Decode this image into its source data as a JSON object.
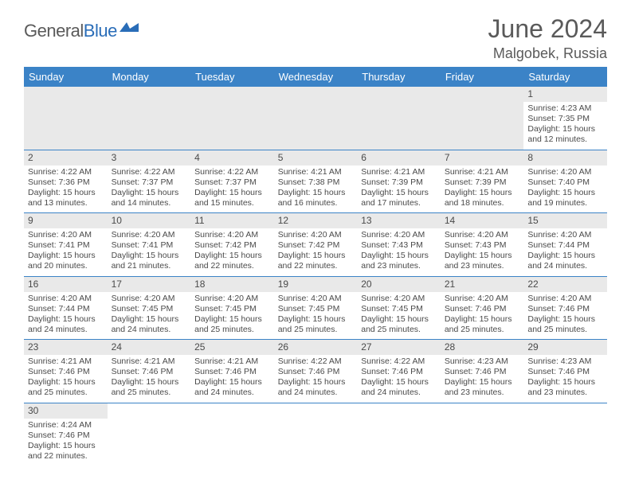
{
  "brand": {
    "part1": "General",
    "part2": "Blue",
    "logo_color": "#2a6db8"
  },
  "title": "June 2024",
  "location": "Malgobek, Russia",
  "header_bg": "#3b83c7",
  "header_fg": "#ffffff",
  "daynum_bg": "#e9e9e9",
  "text_color": "#4a4a4a",
  "divider_color": "#3b83c7",
  "day_headers": [
    "Sunday",
    "Monday",
    "Tuesday",
    "Wednesday",
    "Thursday",
    "Friday",
    "Saturday"
  ],
  "weeks": [
    [
      null,
      null,
      null,
      null,
      null,
      null,
      {
        "n": "1",
        "sr": "4:23 AM",
        "ss": "7:35 PM",
        "dl": "15 hours and 12 minutes."
      }
    ],
    [
      {
        "n": "2",
        "sr": "4:22 AM",
        "ss": "7:36 PM",
        "dl": "15 hours and 13 minutes."
      },
      {
        "n": "3",
        "sr": "4:22 AM",
        "ss": "7:37 PM",
        "dl": "15 hours and 14 minutes."
      },
      {
        "n": "4",
        "sr": "4:22 AM",
        "ss": "7:37 PM",
        "dl": "15 hours and 15 minutes."
      },
      {
        "n": "5",
        "sr": "4:21 AM",
        "ss": "7:38 PM",
        "dl": "15 hours and 16 minutes."
      },
      {
        "n": "6",
        "sr": "4:21 AM",
        "ss": "7:39 PM",
        "dl": "15 hours and 17 minutes."
      },
      {
        "n": "7",
        "sr": "4:21 AM",
        "ss": "7:39 PM",
        "dl": "15 hours and 18 minutes."
      },
      {
        "n": "8",
        "sr": "4:20 AM",
        "ss": "7:40 PM",
        "dl": "15 hours and 19 minutes."
      }
    ],
    [
      {
        "n": "9",
        "sr": "4:20 AM",
        "ss": "7:41 PM",
        "dl": "15 hours and 20 minutes."
      },
      {
        "n": "10",
        "sr": "4:20 AM",
        "ss": "7:41 PM",
        "dl": "15 hours and 21 minutes."
      },
      {
        "n": "11",
        "sr": "4:20 AM",
        "ss": "7:42 PM",
        "dl": "15 hours and 22 minutes."
      },
      {
        "n": "12",
        "sr": "4:20 AM",
        "ss": "7:42 PM",
        "dl": "15 hours and 22 minutes."
      },
      {
        "n": "13",
        "sr": "4:20 AM",
        "ss": "7:43 PM",
        "dl": "15 hours and 23 minutes."
      },
      {
        "n": "14",
        "sr": "4:20 AM",
        "ss": "7:43 PM",
        "dl": "15 hours and 23 minutes."
      },
      {
        "n": "15",
        "sr": "4:20 AM",
        "ss": "7:44 PM",
        "dl": "15 hours and 24 minutes."
      }
    ],
    [
      {
        "n": "16",
        "sr": "4:20 AM",
        "ss": "7:44 PM",
        "dl": "15 hours and 24 minutes."
      },
      {
        "n": "17",
        "sr": "4:20 AM",
        "ss": "7:45 PM",
        "dl": "15 hours and 24 minutes."
      },
      {
        "n": "18",
        "sr": "4:20 AM",
        "ss": "7:45 PM",
        "dl": "15 hours and 25 minutes."
      },
      {
        "n": "19",
        "sr": "4:20 AM",
        "ss": "7:45 PM",
        "dl": "15 hours and 25 minutes."
      },
      {
        "n": "20",
        "sr": "4:20 AM",
        "ss": "7:45 PM",
        "dl": "15 hours and 25 minutes."
      },
      {
        "n": "21",
        "sr": "4:20 AM",
        "ss": "7:46 PM",
        "dl": "15 hours and 25 minutes."
      },
      {
        "n": "22",
        "sr": "4:20 AM",
        "ss": "7:46 PM",
        "dl": "15 hours and 25 minutes."
      }
    ],
    [
      {
        "n": "23",
        "sr": "4:21 AM",
        "ss": "7:46 PM",
        "dl": "15 hours and 25 minutes."
      },
      {
        "n": "24",
        "sr": "4:21 AM",
        "ss": "7:46 PM",
        "dl": "15 hours and 25 minutes."
      },
      {
        "n": "25",
        "sr": "4:21 AM",
        "ss": "7:46 PM",
        "dl": "15 hours and 24 minutes."
      },
      {
        "n": "26",
        "sr": "4:22 AM",
        "ss": "7:46 PM",
        "dl": "15 hours and 24 minutes."
      },
      {
        "n": "27",
        "sr": "4:22 AM",
        "ss": "7:46 PM",
        "dl": "15 hours and 24 minutes."
      },
      {
        "n": "28",
        "sr": "4:23 AM",
        "ss": "7:46 PM",
        "dl": "15 hours and 23 minutes."
      },
      {
        "n": "29",
        "sr": "4:23 AM",
        "ss": "7:46 PM",
        "dl": "15 hours and 23 minutes."
      }
    ],
    [
      {
        "n": "30",
        "sr": "4:24 AM",
        "ss": "7:46 PM",
        "dl": "15 hours and 22 minutes."
      },
      null,
      null,
      null,
      null,
      null,
      null
    ]
  ],
  "labels": {
    "sunrise": "Sunrise:",
    "sunset": "Sunset:",
    "daylight": "Daylight:"
  }
}
